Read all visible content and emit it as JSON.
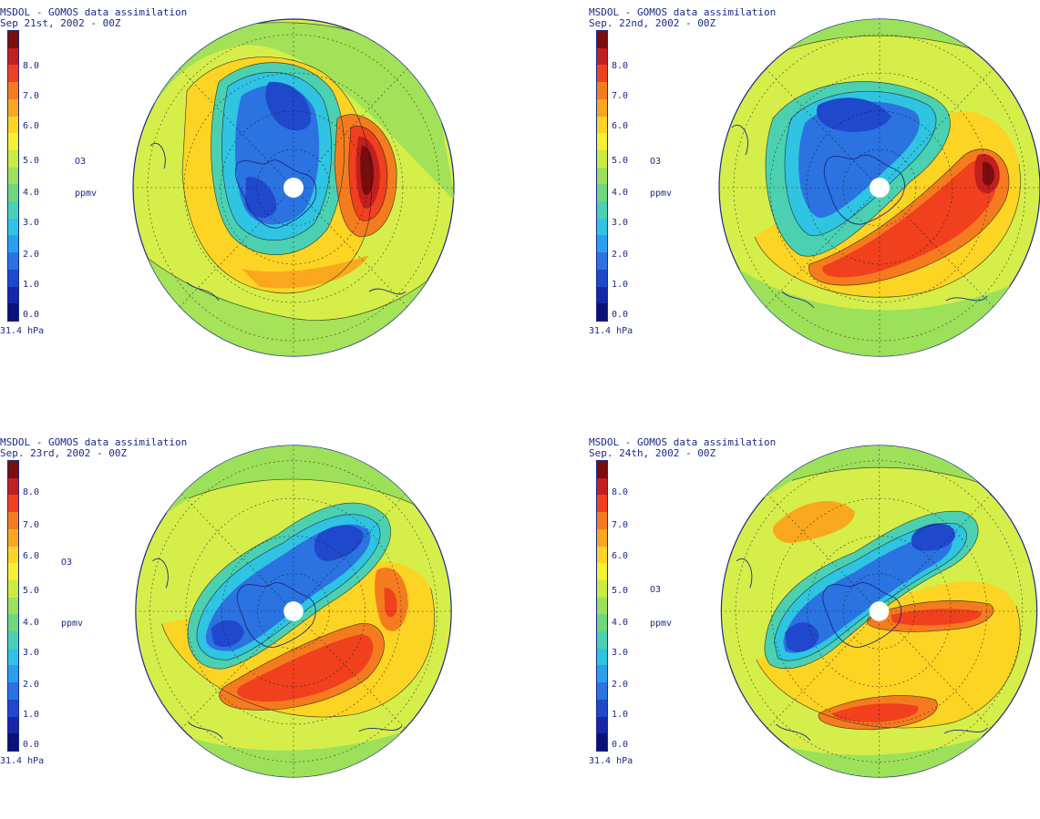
{
  "panels": [
    {
      "title_line1": "MSDOL - GOMOS data assimilation",
      "title_line2": "Sep 21st, 2002 - 00Z",
      "quantity": "O3",
      "unit": "ppmv",
      "level": "31.4 hPa",
      "colorbar_ticks": [
        "8.0",
        "7.0",
        "6.0",
        "5.0",
        "4.0",
        "3.0",
        "2.0",
        "1.0",
        "0.0"
      ]
    },
    {
      "title_line1": "MSDOL - GOMOS data assimilation",
      "title_line2": "Sep. 22nd, 2002 - 00Z",
      "quantity": "O3",
      "unit": "ppmv",
      "level": "31.4 hPa",
      "colorbar_ticks": [
        "8.0",
        "7.0",
        "6.0",
        "5.0",
        "4.0",
        "3.0",
        "2.0",
        "1.0",
        "0.0"
      ]
    },
    {
      "title_line1": "MSDOL - GOMOS data assimilation",
      "title_line2": "Sep. 23rd, 2002 - 00Z",
      "quantity": "O3",
      "unit": "ppmv",
      "level": "31.4 hPa",
      "colorbar_ticks": [
        "8.0",
        "7.0",
        "6.0",
        "5.0",
        "4.0",
        "3.0",
        "2.0",
        "1.0",
        "0.0"
      ]
    },
    {
      "title_line1": "MSDOL - GOMOS data assimilation",
      "title_line2": "Sep. 24th, 2002 - 00Z",
      "quantity": "O3",
      "unit": "ppmv",
      "level": "31.4 hPa",
      "colorbar_ticks": [
        "8.0",
        "7.0",
        "6.0",
        "5.0",
        "4.0",
        "3.0",
        "2.0",
        "1.0",
        "0.0"
      ]
    }
  ],
  "colorscale": [
    "#7a0d0d",
    "#c21f1f",
    "#f0401e",
    "#f57c1e",
    "#f9a81e",
    "#fbd424",
    "#f4f12f",
    "#c9ec3d",
    "#9de05a",
    "#6fd77c",
    "#4bd1b1",
    "#2fc4e2",
    "#2aa0ec",
    "#2a73e0",
    "#1f48cc",
    "#1526a8",
    "#0b1175"
  ],
  "colors": {
    "text": "#1b2a86",
    "contour": "#1a1a1a",
    "coastline": "#1b2a86",
    "background_field": "#d6ee4a"
  }
}
